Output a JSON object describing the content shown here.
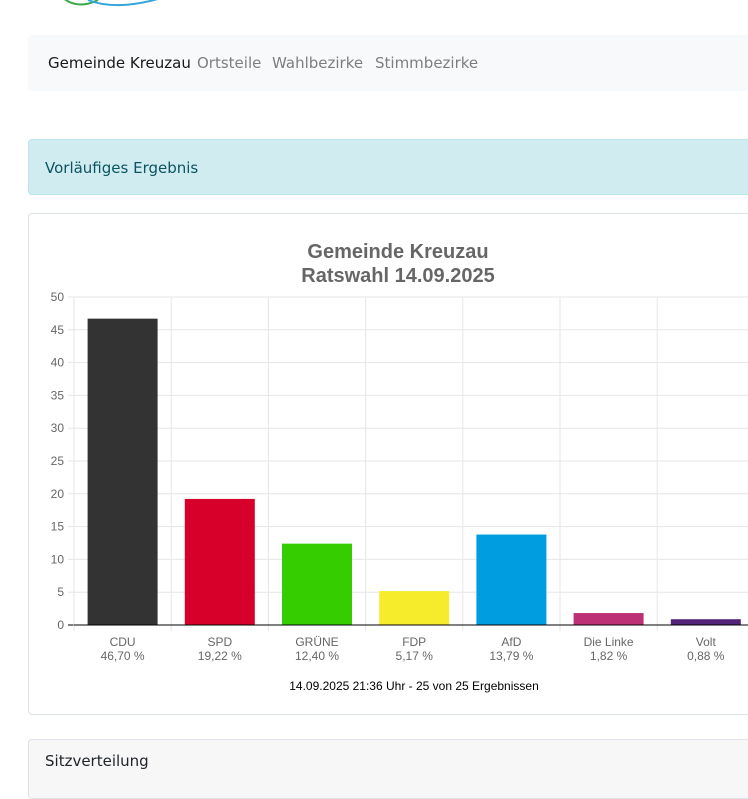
{
  "nav": {
    "items": [
      {
        "label": "Gemeinde Kreuzau",
        "active": true
      },
      {
        "label": "Ortsteile",
        "active": false
      },
      {
        "label": "Wahlbezirke",
        "active": false
      },
      {
        "label": "Stimmbezirke",
        "active": false
      }
    ]
  },
  "alert": {
    "text": "Vorläufiges Ergebnis"
  },
  "sections": {
    "seats_header": "Sitzverteilung"
  },
  "chart_data": {
    "type": "bar",
    "title": [
      "Gemeinde Kreuzau",
      "Ratswahl 14.09.2025"
    ],
    "categories": [
      "CDU",
      "SPD",
      "GRÜNE",
      "FDP",
      "AfD",
      "Die Linke",
      "Volt"
    ],
    "percent_labels": [
      "46,70 %",
      "19,22 %",
      "12,40 %",
      "5,17 %",
      "13,79 %",
      "1,82 %",
      "0,88 %"
    ],
    "values": [
      46.7,
      19.22,
      12.4,
      5.17,
      13.79,
      1.82,
      0.88
    ],
    "colors": [
      "#333333",
      "#d6002a",
      "#35cc00",
      "#f7ec2c",
      "#009ee0",
      "#be3075",
      "#502379"
    ],
    "ylim": [
      0,
      50
    ],
    "yticks": [
      0,
      5,
      10,
      15,
      20,
      25,
      30,
      35,
      40,
      45,
      50
    ],
    "grid": true,
    "footer": "14.09.2025 21:36 Uhr - 25 von 25 Ergebnissen"
  }
}
